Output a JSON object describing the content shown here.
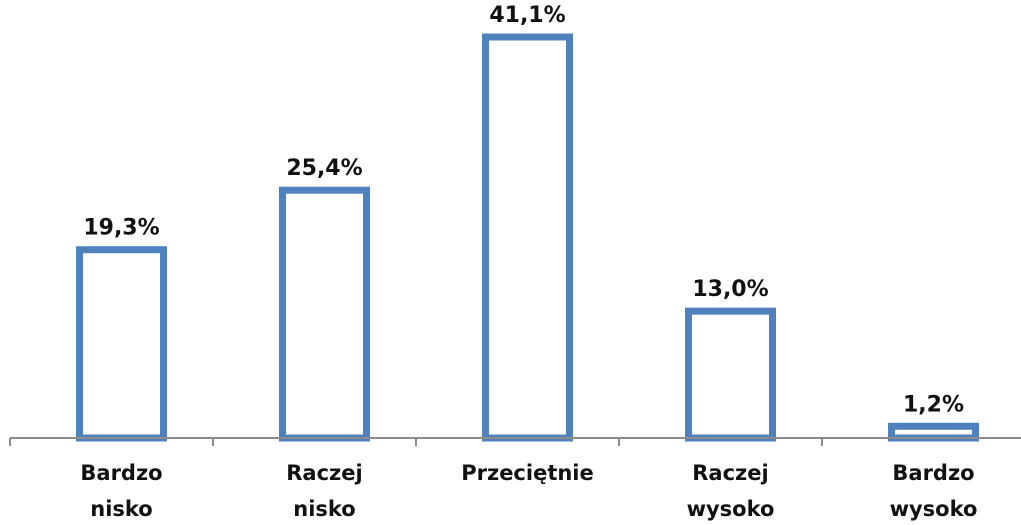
{
  "chart_data": {
    "type": "bar",
    "categories": [
      [
        "Bardzo",
        "nisko"
      ],
      [
        "Raczej",
        "nisko"
      ],
      [
        "Przeciętnie"
      ],
      [
        "Raczej",
        "wysoko"
      ],
      [
        "Bardzo",
        "wysoko"
      ]
    ],
    "values": [
      19.3,
      25.4,
      41.1,
      13.0,
      1.2
    ],
    "data_labels": [
      "19,3%",
      "25,4%",
      "41,1%",
      "13,0%",
      "1,2%"
    ],
    "title": "",
    "xlabel": "",
    "ylabel": "",
    "ylim": [
      0,
      41.1
    ],
    "grid": false,
    "bar_style": "outline",
    "colors": {
      "bar_outline": "#4f81bd",
      "bar_fill": "#ffffff",
      "axis": "#8c8c8c",
      "text": "#111111"
    }
  }
}
